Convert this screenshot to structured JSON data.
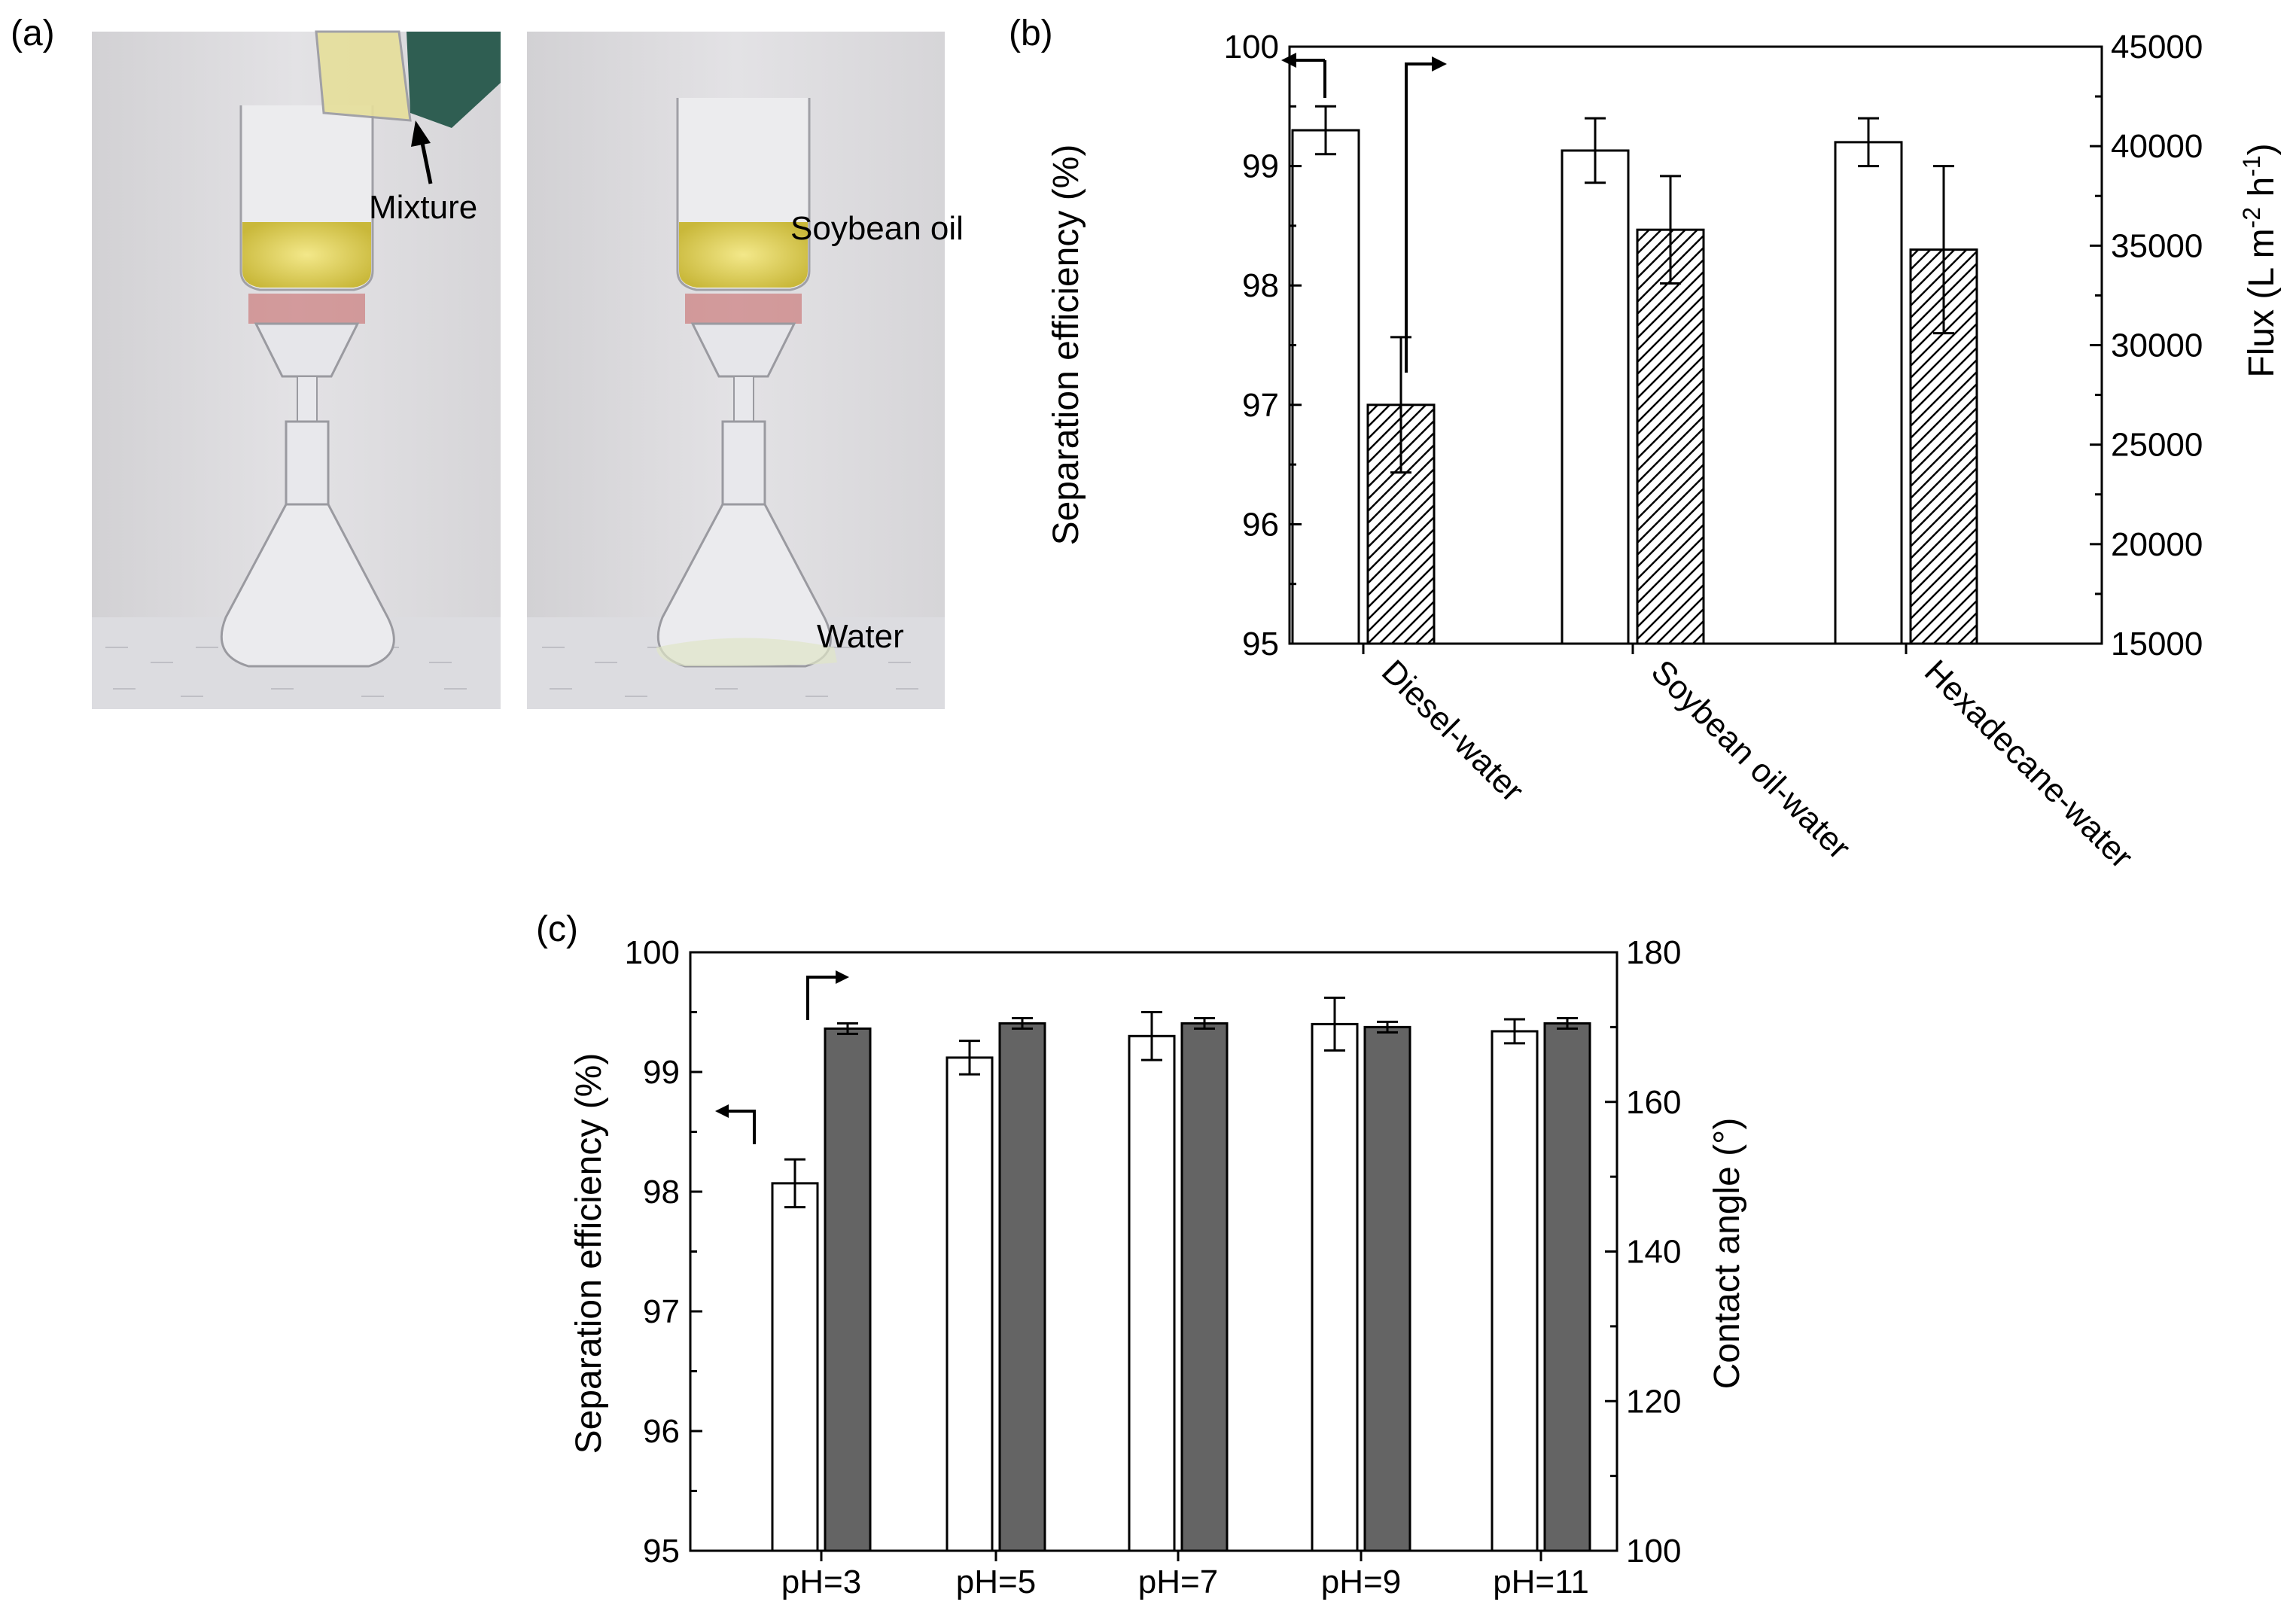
{
  "panels": {
    "a": {
      "label": "(a)",
      "annotations": [
        "Mixture",
        "Soybean oil",
        "Water"
      ]
    },
    "b": {
      "label": "(b)"
    },
    "c": {
      "label": "(c)"
    }
  },
  "chart_data": [
    {
      "panel": "(b)",
      "type": "bar",
      "categories": [
        "Diesel-water",
        "Soybean oil-water",
        "Hexadecane-water"
      ],
      "ylabel": "Separation efficiency (%)",
      "ylim": [
        95,
        100
      ],
      "yticks": [
        95,
        96,
        97,
        98,
        99,
        100
      ],
      "y2label": "Flux (L m-2 h-1)",
      "y2lim": [
        15000,
        45000
      ],
      "y2ticks": [
        15000,
        20000,
        25000,
        30000,
        35000,
        40000,
        45000
      ],
      "series": [
        {
          "axis": "left",
          "fill": "open",
          "values": [
            99.3,
            99.13,
            99.2
          ],
          "errors": [
            0.2,
            0.27,
            0.2
          ]
        },
        {
          "axis": "right",
          "fill": "hatched",
          "values": [
            27000,
            35800,
            34800
          ],
          "errors": [
            3400,
            2700,
            4200
          ]
        }
      ]
    },
    {
      "panel": "(c)",
      "type": "bar",
      "categories": [
        "pH=3",
        "pH=5",
        "pH=7",
        "pH=9",
        "pH=11"
      ],
      "ylabel": "Separation efficiency (%)",
      "ylim": [
        95,
        100
      ],
      "yticks": [
        95,
        96,
        97,
        98,
        99,
        100
      ],
      "y2label": "Contact angle (°)",
      "y2lim": [
        100,
        180
      ],
      "y2ticks": [
        100,
        120,
        140,
        160,
        180
      ],
      "series": [
        {
          "axis": "left",
          "fill": "open",
          "values": [
            98.07,
            99.12,
            99.3,
            99.4,
            99.34
          ],
          "errors": [
            0.2,
            0.14,
            0.2,
            0.22,
            0.1
          ]
        },
        {
          "axis": "right",
          "fill": "#646464",
          "values": [
            169.8,
            170.5,
            170.5,
            170.0,
            170.5
          ],
          "errors": [
            0.7,
            0.7,
            0.7,
            0.7,
            0.7
          ]
        }
      ]
    }
  ]
}
